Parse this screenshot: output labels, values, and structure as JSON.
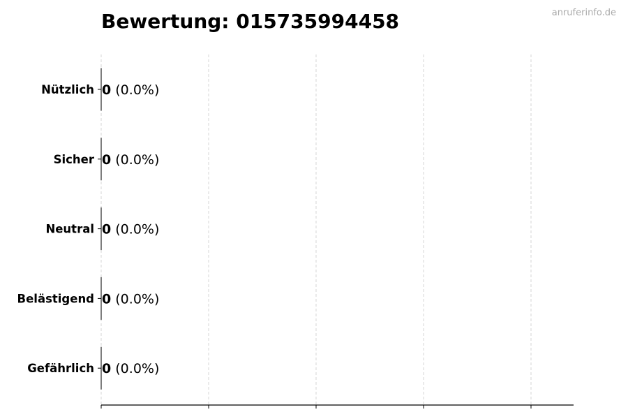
{
  "watermark": "anruferinfo.de",
  "chart_data": {
    "type": "bar",
    "orientation": "horizontal",
    "title": "Bewertung: 015735994458",
    "categories": [
      "Nützlich",
      "Sicher",
      "Neutral",
      "Belästigend",
      "Gefährlich"
    ],
    "values": [
      0,
      0,
      0,
      0,
      0
    ],
    "percent_labels": [
      "(0.0%)",
      "(0.0%)",
      "(0.0%)",
      "(0.0%)",
      "(0.0%)"
    ],
    "xlabel": "",
    "ylabel": "",
    "xlim": [
      0,
      4.4
    ],
    "x_ticks": [
      0,
      1,
      2,
      3,
      4
    ],
    "x_tick_labels_shown": false,
    "grid": "vertical dashed",
    "colors": {
      "bar_edge": "#000000",
      "grid": "#cccccc",
      "watermark": "#aaaaaa"
    }
  }
}
